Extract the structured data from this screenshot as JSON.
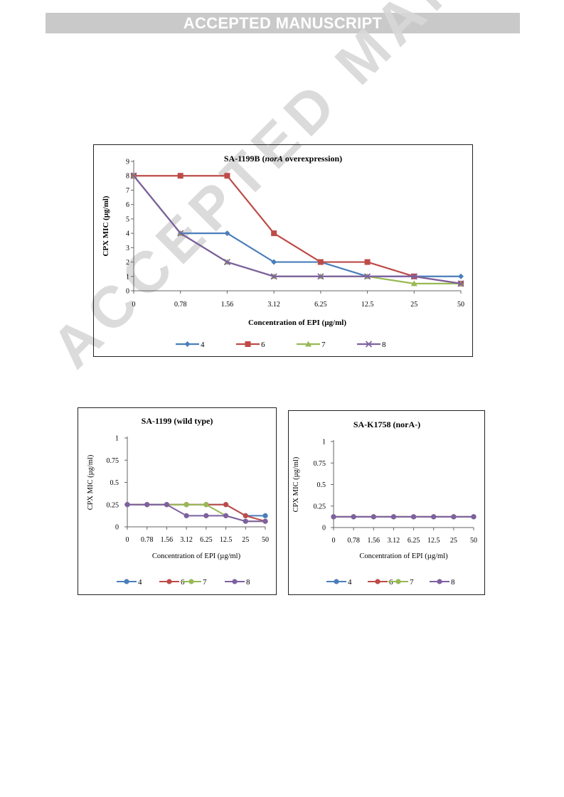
{
  "banner": {
    "text": "ACCEPTED MANUSCRIPT"
  },
  "watermark": {
    "text": "ACCEPTED MANUSCRIPT"
  },
  "chart_data": [
    {
      "id": "main",
      "type": "line",
      "title_parts": [
        {
          "text": "SA-1199B (",
          "italic": false
        },
        {
          "text": "norA",
          "italic": true
        },
        {
          "text": " overexpression)",
          "italic": false
        }
      ],
      "xlabel": "Concentration of EPI (µg/ml)",
      "ylabel": "CPX MIC (µg/ml)",
      "categories": [
        "0",
        "0.78",
        "1.56",
        "3.12",
        "6.25",
        "12.5",
        "25",
        "50"
      ],
      "ylim": [
        0,
        9
      ],
      "yticks": [
        "0",
        "1",
        "2",
        "3",
        "4",
        "5",
        "6",
        "7",
        "8",
        "9"
      ],
      "legend_position": "bottom",
      "series": [
        {
          "name": "4",
          "color": "#4a7ebb",
          "marker": "diamond",
          "values": [
            8,
            4,
            4,
            2,
            2,
            1,
            1,
            1
          ]
        },
        {
          "name": "6",
          "color": "#be4b48",
          "marker": "square",
          "values": [
            8,
            8,
            8,
            4,
            2,
            2,
            1,
            0.5
          ]
        },
        {
          "name": "7",
          "color": "#98b954",
          "marker": "triangle",
          "values": [
            8,
            4,
            2,
            1,
            1,
            1,
            0.5,
            0.5
          ]
        },
        {
          "name": "8",
          "color": "#7d60a0",
          "marker": "x",
          "values": [
            8,
            4,
            2,
            1,
            1,
            1,
            1,
            0.5
          ]
        }
      ]
    },
    {
      "id": "wt",
      "type": "line",
      "title_parts": [
        {
          "text": "SA-1199 (wild type)",
          "italic": false
        }
      ],
      "xlabel": "Concentration of EPI (µg/ml)",
      "ylabel": "CPX MIC (µg/ml)",
      "categories": [
        "0",
        "0.78",
        "1.56",
        "3.12",
        "6.25",
        "12.5",
        "25",
        "50"
      ],
      "ylim": [
        0,
        1
      ],
      "yticks": [
        "0",
        "0.25",
        "0.5",
        "0.75",
        "1"
      ],
      "legend_position": "bottom",
      "series": [
        {
          "name": "4",
          "color": "#4a7ebb",
          "marker": "circle",
          "values": [
            0.25,
            0.25,
            0.25,
            0.25,
            0.25,
            0.25,
            0.125,
            0.125
          ]
        },
        {
          "name": "6",
          "color": "#be4b48",
          "marker": "circle",
          "values": [
            0.25,
            0.25,
            0.25,
            0.25,
            0.25,
            0.25,
            0.125,
            0.0625
          ]
        },
        {
          "name": "7",
          "color": "#98b954",
          "marker": "circle",
          "values": [
            0.25,
            0.25,
            0.25,
            0.25,
            0.25,
            0.125,
            0.0625,
            0.0625
          ]
        },
        {
          "name": "8",
          "color": "#7d60a0",
          "marker": "circle",
          "values": [
            0.25,
            0.25,
            0.25,
            0.125,
            0.125,
            0.125,
            0.0625,
            0.0625
          ]
        }
      ]
    },
    {
      "id": "nor",
      "type": "line",
      "title_parts": [
        {
          "text": "SA-K1758 (norA-)",
          "italic": false
        }
      ],
      "xlabel": "Concentration of EPI (µg/ml)",
      "ylabel": "CPX MIC (µg/ml)",
      "categories": [
        "0",
        "0.78",
        "1.56",
        "3.12",
        "6.25",
        "12.5",
        "25",
        "50"
      ],
      "ylim": [
        0,
        1
      ],
      "yticks": [
        "0",
        "0.25",
        "0.5",
        "0.75",
        "1"
      ],
      "legend_position": "bottom",
      "series": [
        {
          "name": "4",
          "color": "#4a7ebb",
          "marker": "circle",
          "values": [
            0.125,
            0.125,
            0.125,
            0.125,
            0.125,
            0.125,
            0.125,
            0.125
          ]
        },
        {
          "name": "6",
          "color": "#be4b48",
          "marker": "circle",
          "values": [
            0.125,
            0.125,
            0.125,
            0.125,
            0.125,
            0.125,
            0.125,
            0.125
          ]
        },
        {
          "name": "7",
          "color": "#98b954",
          "marker": "circle",
          "values": [
            0.125,
            0.125,
            0.125,
            0.125,
            0.125,
            0.125,
            0.125,
            0.125
          ]
        },
        {
          "name": "8",
          "color": "#7d60a0",
          "marker": "circle",
          "values": [
            0.125,
            0.125,
            0.125,
            0.125,
            0.125,
            0.125,
            0.125,
            0.125
          ]
        }
      ]
    }
  ]
}
